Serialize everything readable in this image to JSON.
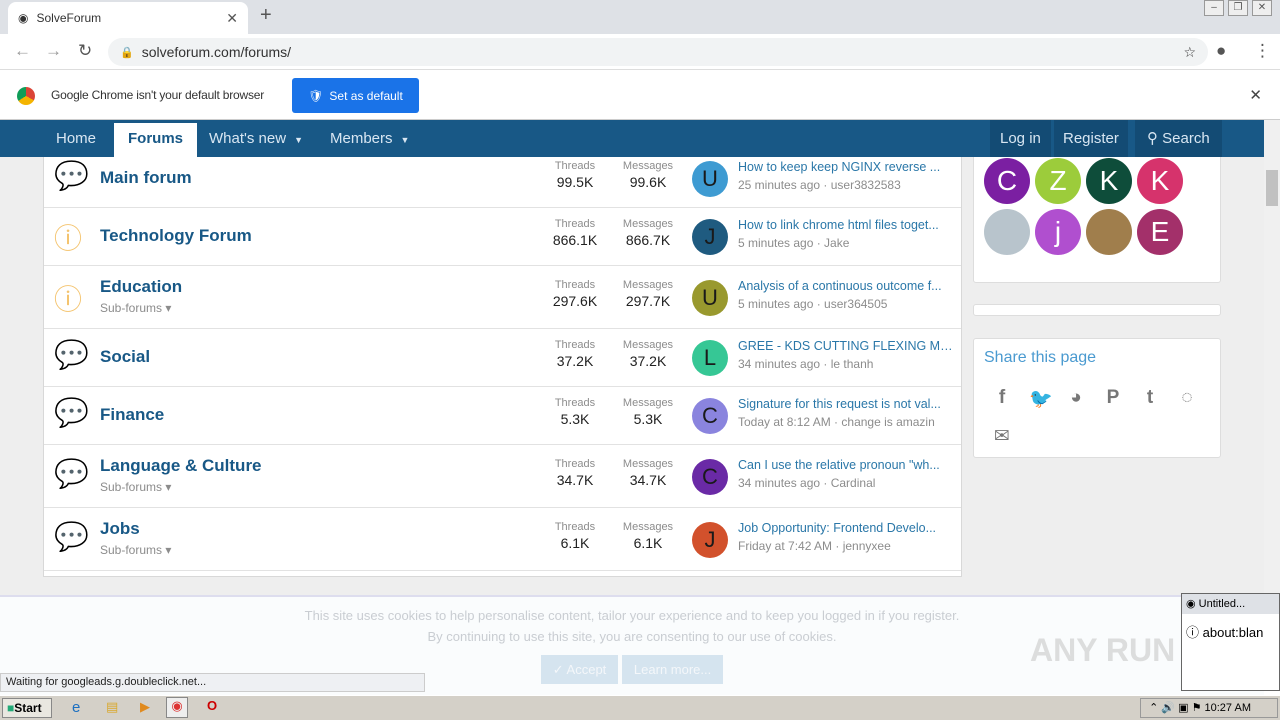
{
  "browser": {
    "tab_title": "SolveForum",
    "url": "solveforum.com/forums/",
    "infobar_text": "Google Chrome isn't your default browser",
    "set_default_label": "Set as default"
  },
  "nav": {
    "items": [
      "Home",
      "Forums",
      "What's new",
      "Members"
    ],
    "login": "Log in",
    "register": "Register",
    "search": "Search",
    "accent": "#185886"
  },
  "forums": [
    {
      "title": "Main forum",
      "sub": "",
      "icon": "chat-bubbles",
      "threads": "99.5K",
      "messages": "99.6K",
      "avatar": "U",
      "avatar_color": "#3e9bd2",
      "latest": "How to keep keep NGINX reverse ...",
      "meta": "25 minutes ago · user3832583"
    },
    {
      "title": "Technology Forum",
      "sub": "",
      "icon": "question-circle",
      "threads": "866.1K",
      "messages": "866.7K",
      "avatar": "J",
      "avatar_color": "#1f5b80",
      "latest": "How to link chrome html files toget...",
      "meta": "5 minutes ago · Jake"
    },
    {
      "title": "Education",
      "sub": "Sub-forums",
      "icon": "question-circle",
      "threads": "297.6K",
      "messages": "297.7K",
      "avatar": "U",
      "avatar_color": "#99992e",
      "latest": "Analysis of a continuous outcome f...",
      "meta": "5 minutes ago · user364505"
    },
    {
      "title": "Social",
      "sub": "",
      "icon": "chat-bubbles",
      "threads": "37.2K",
      "messages": "37.2K",
      "avatar": "L",
      "avatar_color": "#36c795",
      "latest": "GREE - KDS CUTTING FLEXING MA...",
      "meta": "34 minutes ago · le thanh"
    },
    {
      "title": "Finance",
      "sub": "",
      "icon": "chat-bubbles",
      "threads": "5.3K",
      "messages": "5.3K",
      "avatar": "C",
      "avatar_color": "#8a84de",
      "latest": "Signature for this request is not val...",
      "meta": "Today at 8:12 AM · change is amazin"
    },
    {
      "title": "Language & Culture",
      "sub": "Sub-forums",
      "icon": "chat-bubbles",
      "threads": "34.7K",
      "messages": "34.7K",
      "avatar": "C",
      "avatar_color": "#6a2aa6",
      "latest": "Can I use the relative pronoun \"wh...",
      "meta": "34 minutes ago · Cardinal"
    },
    {
      "title": "Jobs",
      "sub": "Sub-forums",
      "icon": "chat-bubbles",
      "threads": "6.1K",
      "messages": "6.1K",
      "avatar": "J",
      "avatar_color": "#d2512c",
      "latest": "Job Opportunity: Frontend Develo...",
      "meta": "Friday at 7:42 AM · jennyxee"
    }
  ],
  "labels": {
    "threads": "Threads",
    "messages": "Messages"
  },
  "members": [
    {
      "letter": "C",
      "color": "#7b1fa2"
    },
    {
      "letter": "Z",
      "color": "#9ccc3b"
    },
    {
      "letter": "K",
      "color": "#0e4d3a"
    },
    {
      "letter": "K",
      "color": "#d6336c"
    },
    {
      "letter": "",
      "color": "#b8c4cc"
    },
    {
      "letter": "j",
      "color": "#b04fcf"
    },
    {
      "letter": "",
      "color": "#a07e4c"
    },
    {
      "letter": "E",
      "color": "#a3306a"
    }
  ],
  "share": {
    "title": "Share this page",
    "icons": [
      "facebook",
      "twitter",
      "reddit",
      "pinterest",
      "tumblr",
      "whatsapp",
      "email"
    ]
  },
  "cookie": {
    "line1": "This site uses cookies to help personalise content, tailor your experience and to keep you logged in if you register.",
    "line2": "By continuing to use this site, you are consenting to our use of cookies.",
    "accept": "Accept",
    "learn": "Learn more..."
  },
  "status": "Waiting for googleads.g.doubleclick.net...",
  "popup": {
    "title": "Untitled...",
    "url": "about:blan"
  },
  "taskbar": {
    "start": "Start",
    "clock": "10:27 AM"
  },
  "watermark": "ANY RUN"
}
